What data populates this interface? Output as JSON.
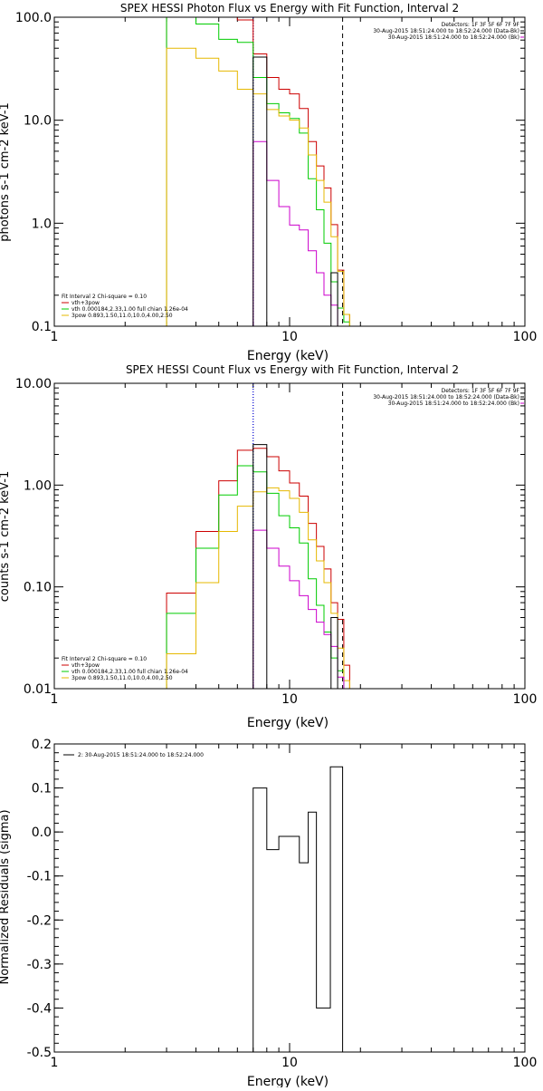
{
  "chart_data": [
    {
      "type": "line",
      "title": "SPEX HESSI Photon Flux vs Energy with Fit Function, Interval 2",
      "xlabel": "Energy (keV)",
      "ylabel": "photons s-1 cm-2 keV-1",
      "xscale": "log",
      "yscale": "log",
      "xlim": [
        1,
        100
      ],
      "ylim": [
        0.1,
        100
      ],
      "xticks": [
        "1",
        "10",
        "100"
      ],
      "yticks": [
        "0.1",
        "1.0",
        "10.0",
        "100.0"
      ],
      "info_lines": [
        "Detectors: 1F 3F 5F 6F 7F 9F",
        "30-Aug-2015 18:51:24.000 to 18:52:24.000 (Data-Bk)",
        "30-Aug-2015 18:51:24.000 to 18:52:24.000 (Bk)"
      ],
      "info_colors": [
        "#000000",
        "#000000",
        "#cc00cc"
      ],
      "legend": [
        "Fit Interval 2   Chi-square = 0.10",
        "vth+3pow",
        "vth 0.000184,2.33,1.00  full chian 1.26e-04",
        "3pow 0.893,1.50,11.0,10.0,4.00,2.50"
      ],
      "legend_colors": [
        "#000000",
        "#cc0000",
        "#00cc00",
        "#e6b800"
      ],
      "vlines": [
        {
          "x": 7.0,
          "style": "dotted",
          "color": "#000000"
        },
        {
          "x": 16.8,
          "style": "dashed",
          "color": "#000000"
        },
        {
          "x": 7.0,
          "style": "dotted",
          "color": "#0000ff"
        }
      ],
      "edges": [
        3,
        4,
        5,
        6,
        7,
        8,
        9,
        10,
        11,
        12,
        13,
        14,
        15,
        16,
        17,
        18,
        19
      ],
      "series": [
        {
          "name": "vth+3pow",
          "color": "#cc0000",
          "values": [
            130,
            120,
            100,
            94,
            44,
            26,
            20,
            18,
            13,
            6.2,
            3.6,
            2.2,
            0.97,
            0.35,
            0.13,
            0.1
          ]
        },
        {
          "name": "vth",
          "color": "#00cc00",
          "values": [
            150,
            86,
            61,
            57,
            26,
            14.5,
            11.8,
            10.4,
            7.5,
            2.7,
            1.35,
            0.64,
            0.27,
            0.15,
            0.11,
            0.1
          ]
        },
        {
          "name": "3pow",
          "color": "#e6b800",
          "values": [
            50,
            40,
            30,
            20,
            18,
            12.7,
            11,
            10,
            8.4,
            4.6,
            2.6,
            1.6,
            0.74,
            0.34,
            0.13,
            0.1
          ]
        },
        {
          "name": "Bk",
          "color": "#cc00cc",
          "values": [
            null,
            null,
            null,
            null,
            6.2,
            2.6,
            1.45,
            0.96,
            0.86,
            0.54,
            0.33,
            0.2,
            0.16,
            0.1,
            null,
            null
          ]
        },
        {
          "name": "data",
          "color": "#000000",
          "values": [
            null,
            null,
            null,
            null,
            41,
            null,
            null,
            null,
            null,
            null,
            null,
            null,
            0.33,
            0.1,
            null,
            null
          ]
        }
      ]
    },
    {
      "type": "line",
      "title": "SPEX HESSI Count Flux vs Energy with Fit Function, Interval 2",
      "xlabel": "Energy (keV)",
      "ylabel": "counts s-1 cm-2 keV-1",
      "xscale": "log",
      "yscale": "log",
      "xlim": [
        1,
        100
      ],
      "ylim": [
        0.01,
        10
      ],
      "xticks": [
        "1",
        "10",
        "100"
      ],
      "yticks": [
        "0.01",
        "0.10",
        "1.00",
        "10.00"
      ],
      "info_lines": [
        "Detectors: 1F 3F 5F 6F 7F 9F",
        "30-Aug-2015 18:51:24.000 to 18:52:24.000 (Data-Bk)",
        "30-Aug-2015 18:51:24.000 to 18:52:24.000 (Bk)"
      ],
      "info_colors": [
        "#000000",
        "#000000",
        "#cc00cc"
      ],
      "legend": [
        "Fit Interval 2   Chi-square = 0.10",
        "vth+3pow",
        "vth 0.000184,2.33,1.00  full chian 1.26e-04",
        "3pow 0.893,1.50,11.0,10.0,4.00,2.50"
      ],
      "legend_colors": [
        "#000000",
        "#cc0000",
        "#00cc00",
        "#e6b800"
      ],
      "vlines": [
        {
          "x": 7.0,
          "style": "dotted",
          "color": "#000000"
        },
        {
          "x": 16.8,
          "style": "dashed",
          "color": "#000000"
        },
        {
          "x": 7.0,
          "style": "dotted",
          "color": "#0000ff"
        }
      ],
      "edges": [
        3,
        4,
        5,
        6,
        7,
        8,
        9,
        10,
        11,
        12,
        13,
        14,
        15,
        16,
        17,
        18,
        19
      ],
      "series": [
        {
          "name": "vth+3pow",
          "color": "#cc0000",
          "values": [
            0.087,
            0.35,
            1.1,
            2.2,
            2.3,
            1.9,
            1.38,
            1.05,
            0.78,
            0.42,
            0.25,
            0.15,
            0.07,
            0.048,
            0.017,
            0.01
          ]
        },
        {
          "name": "vth",
          "color": "#00cc00",
          "values": [
            0.055,
            0.24,
            0.8,
            1.55,
            1.35,
            0.83,
            0.5,
            0.38,
            0.27,
            0.12,
            0.066,
            0.036,
            0.02,
            0.015,
            0.01,
            0.01
          ]
        },
        {
          "name": "3pow",
          "color": "#e6b800",
          "values": [
            0.022,
            0.11,
            0.35,
            0.62,
            0.86,
            0.94,
            0.88,
            0.74,
            0.54,
            0.29,
            0.18,
            0.11,
            0.055,
            0.025,
            0.012,
            0.01
          ]
        },
        {
          "name": "Bk",
          "color": "#cc00cc",
          "values": [
            null,
            null,
            null,
            null,
            0.36,
            0.24,
            0.16,
            0.115,
            0.082,
            0.06,
            0.045,
            0.034,
            0.026,
            0.013,
            null,
            null
          ]
        },
        {
          "name": "data",
          "color": "#000000",
          "values": [
            null,
            null,
            null,
            null,
            2.5,
            null,
            null,
            null,
            null,
            null,
            null,
            null,
            0.05,
            0.01,
            null,
            null
          ]
        }
      ]
    },
    {
      "type": "line",
      "title": "",
      "xlabel": "Energy (keV)",
      "ylabel": "Normalized Residuals (sigma)",
      "xscale": "log",
      "yscale": "linear",
      "xlim": [
        1,
        100
      ],
      "ylim": [
        -0.5,
        0.2
      ],
      "xticks": [
        "1",
        "10",
        "100"
      ],
      "yticks": [
        "-0.5",
        "-0.4",
        "-0.3",
        "-0.2",
        "-0.1",
        "0.0",
        "0.1",
        "0.2"
      ],
      "legend": [
        "2: 30-Aug-2015 18:51:24.000 to 18:52:24.000"
      ],
      "legend_colors": [
        "#000000"
      ],
      "edges": [
        7.0,
        8.0,
        9.0,
        11.0,
        12.0,
        13.0,
        14.9,
        16.8
      ],
      "series": [
        {
          "name": "residuals",
          "color": "#000000",
          "values": [
            0.1,
            -0.04,
            -0.01,
            -0.07,
            0.045,
            -0.4,
            0.148
          ]
        }
      ]
    }
  ]
}
